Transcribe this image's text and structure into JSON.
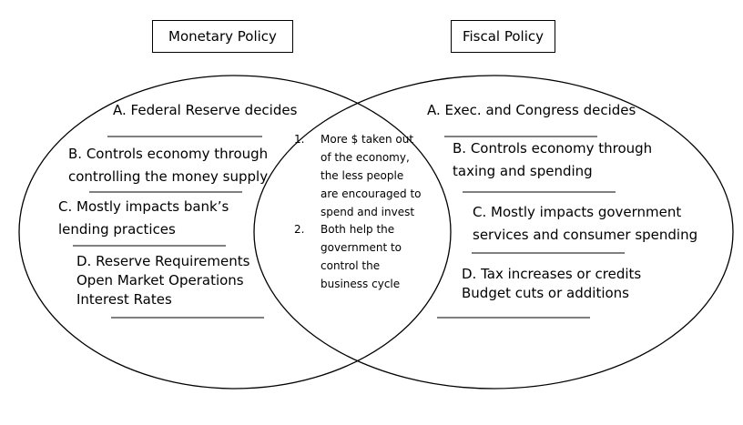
{
  "titles": {
    "left": "Monetary Policy",
    "right": "Fiscal Policy"
  },
  "monetary": {
    "a": "A. Federal Reserve decides",
    "b1": "B. Controls economy through",
    "b2": "controlling the money supply",
    "c1": "C. Mostly impacts bank’s",
    "c2": "lending practices",
    "d1": "D. Reserve Requirements",
    "d2": "Open Market Operations",
    "d3": "Interest Rates"
  },
  "fiscal": {
    "a": "A. Exec. and Congress decides",
    "b1": "B. Controls economy through",
    "b2": "taxing and spending",
    "c1": "C. Mostly impacts government",
    "c2": "services and consumer spending",
    "d1": "D. Tax increases or credits",
    "d2": "Budget cuts or additions"
  },
  "both": {
    "n1": "1.",
    "i1_l1": "More $ taken out",
    "i1_l2": "of the economy,",
    "i1_l3": "the less people",
    "i1_l4": "are encouraged to",
    "i1_l5": "spend and invest",
    "n2": "2.",
    "i2_l1": "Both help the",
    "i2_l2": "government to",
    "i2_l3": "control the",
    "i2_l4": "business cycle"
  }
}
